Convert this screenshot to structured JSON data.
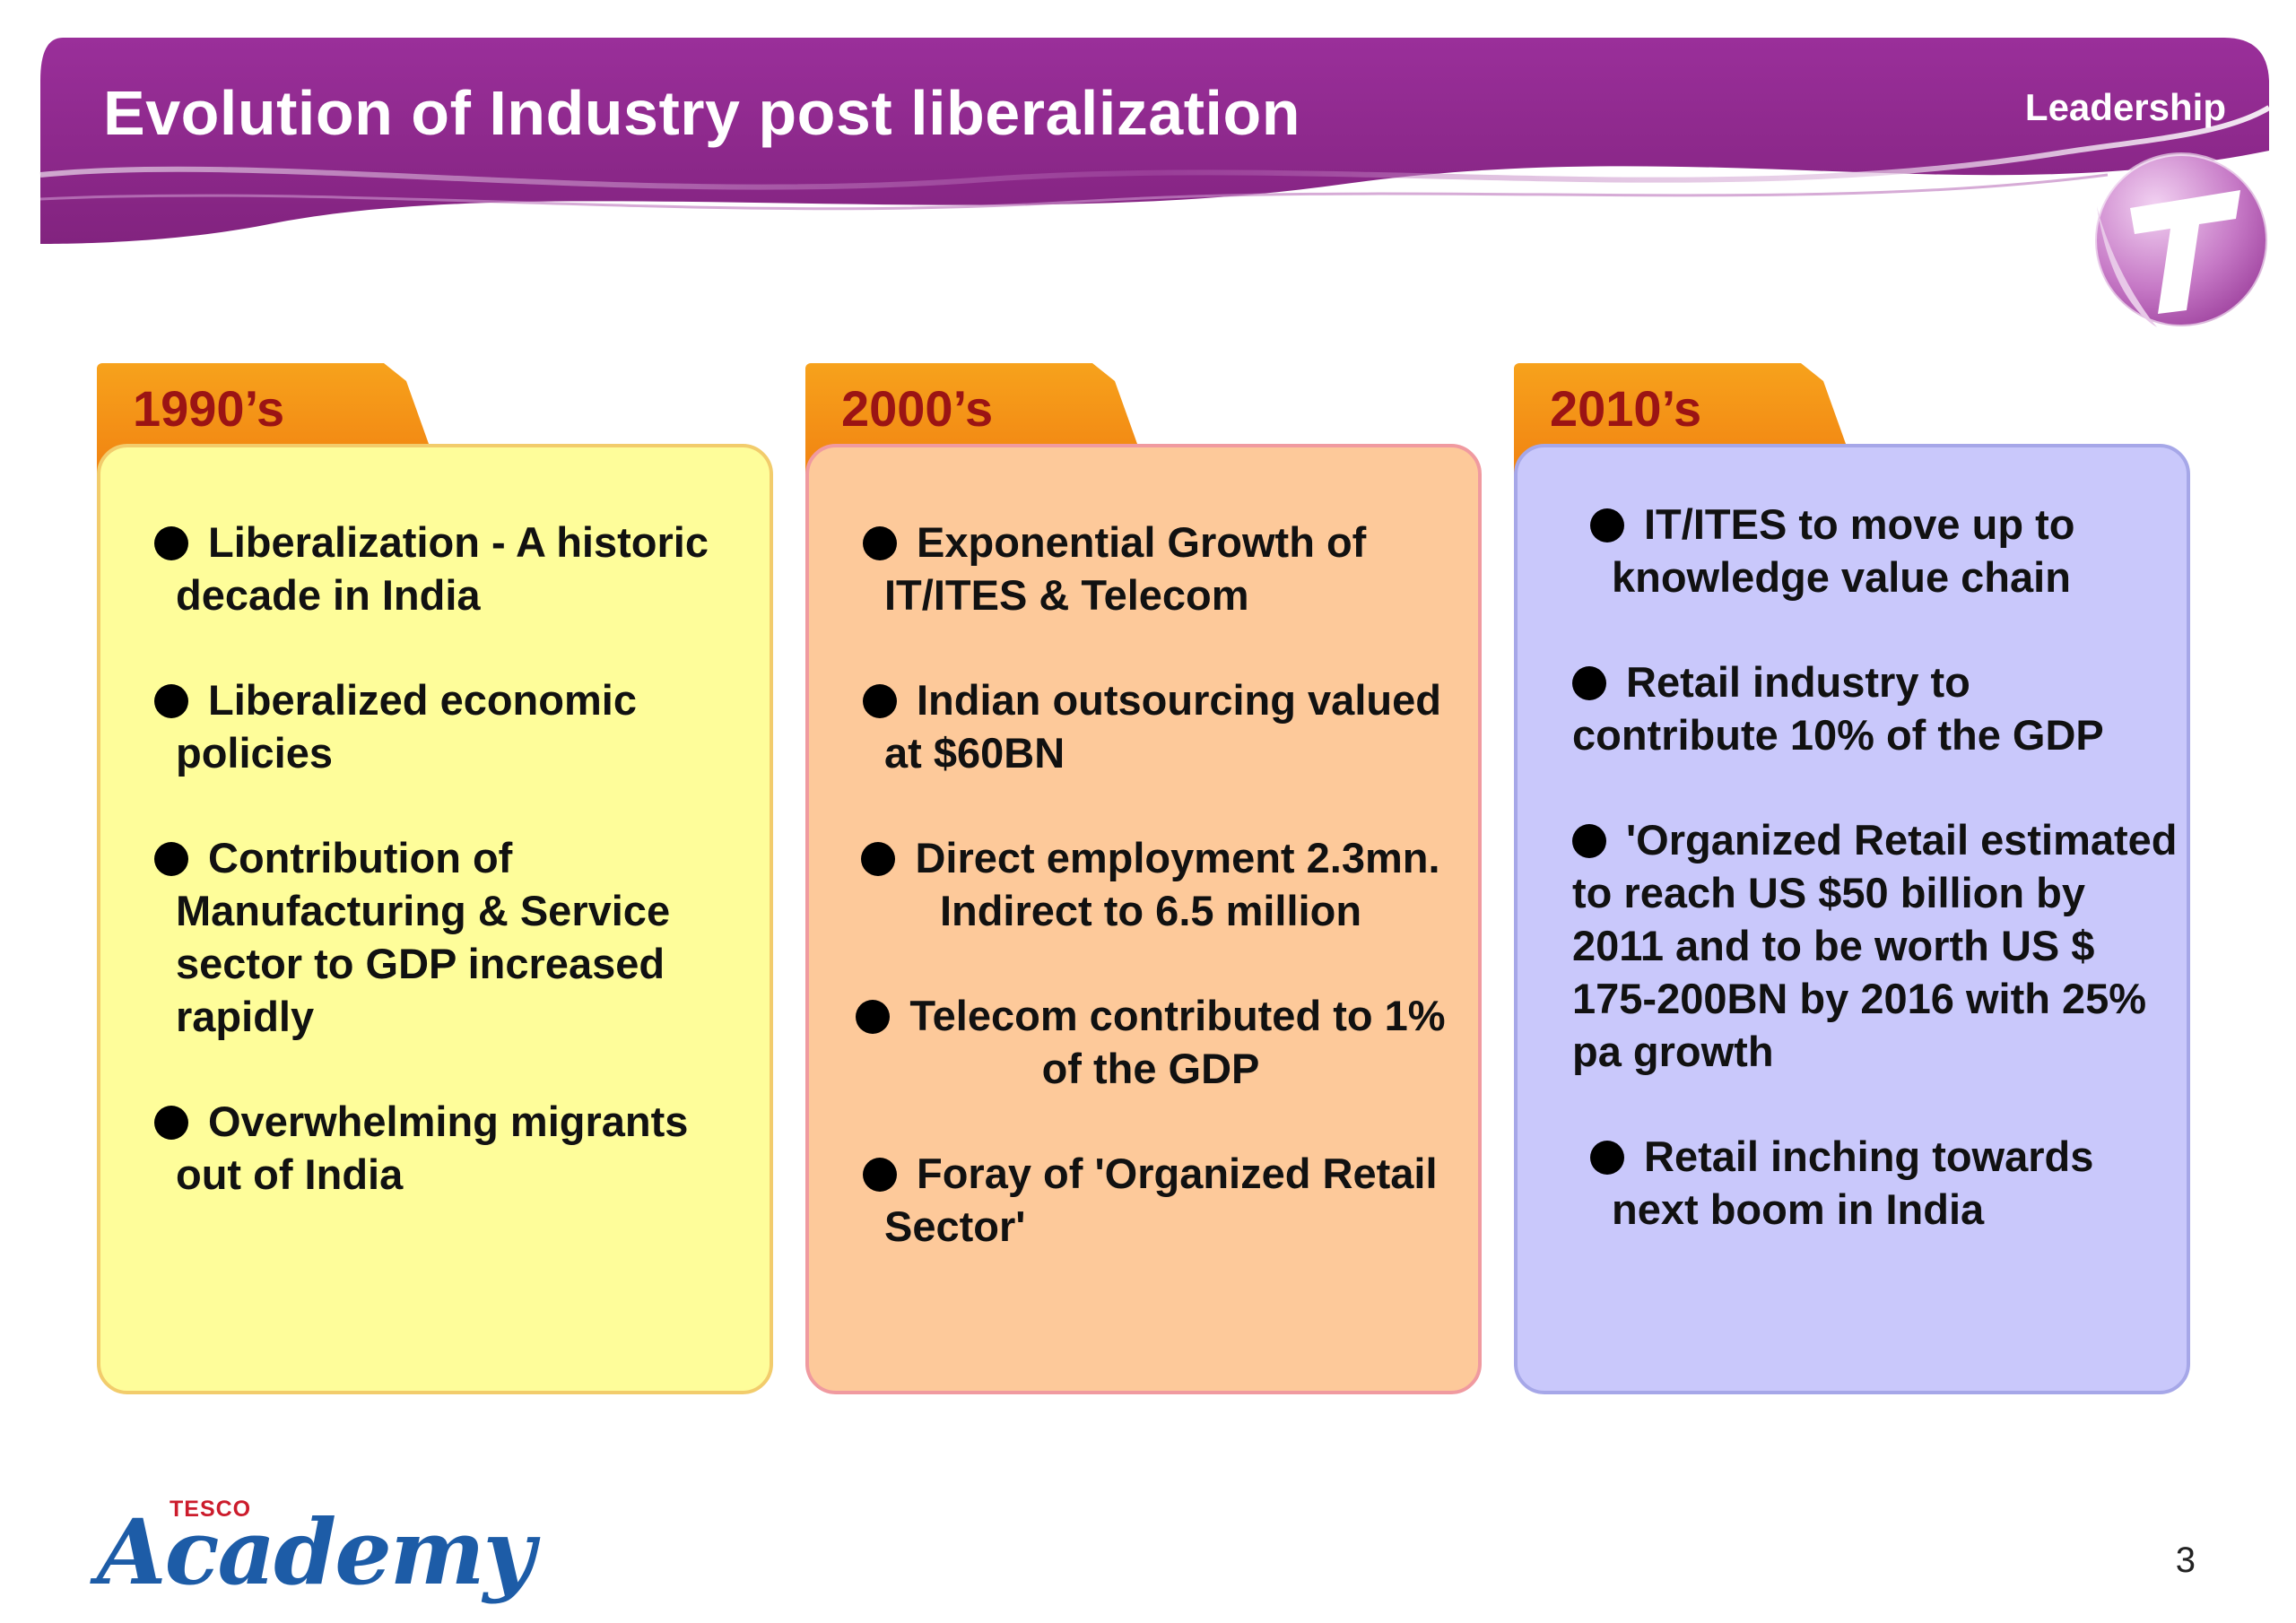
{
  "header": {
    "title": "Evolution of Industry post liberalization",
    "section": "Leadership",
    "logo_icon": "t-circle-logo-icon"
  },
  "panels": [
    {
      "label": "1990’s",
      "bullets": [
        "Liberalization - A historic decade in India",
        "Liberalized economic policies",
        "Contribution of Manufacturing & Service sector to GDP increased rapidly",
        "Overwhelming migrants out of India"
      ]
    },
    {
      "label": "2000’s",
      "bullets": [
        "Exponential Growth of IT/ITES & Telecom",
        "Indian outsourcing valued at $60BN",
        "Direct employment 2.3mn. Indirect to 6.5 million",
        "Telecom contributed to 1% of the GDP",
        "Foray of 'Organized Retail Sector'"
      ]
    },
    {
      "label": "2010’s",
      "bullets": [
        "IT/ITES to move up to knowledge value chain",
        "Retail industry to contribute 10% of the GDP",
        "'Organized Retail estimated to reach US $50 billion by 2011 and to be worth US $ 175-200BN by 2016 with 25% pa growth",
        "Retail inching towards next boom in India"
      ]
    }
  ],
  "footer": {
    "brand_small": "TESCO",
    "brand_word": "Academy",
    "page_number": "3"
  },
  "colors": {
    "header_purple": "#8e2a8e",
    "tab_orange": "#f39418",
    "tab_text": "#9b1414",
    "card_1990s": "#fefd9a",
    "card_2000s": "#fdc99a",
    "card_2010s": "#c9c8fb",
    "academy_blue": "#1d5ca7",
    "tesco_red": "#cc1c2c"
  }
}
